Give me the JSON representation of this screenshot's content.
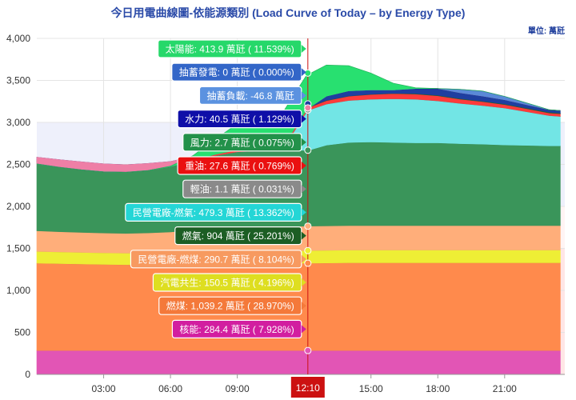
{
  "title": "今日用電曲線圖-依能源類別 (Load Curve of Today – by Energy Type)",
  "unit": "單位: 萬瓩",
  "crosshair_time": "12:10",
  "chart_data": {
    "type": "area",
    "stacked": true,
    "title": "今日用電曲線圖-依能源類別 (Load Curve of Today – by Energy Type)",
    "ylabel": "單位: 萬瓩",
    "ylim": [
      0,
      4000
    ],
    "yticks": [
      0,
      500,
      1000,
      1500,
      2000,
      2500,
      3000,
      3500,
      4000
    ],
    "xlim": [
      0,
      23.7
    ],
    "xticks": [
      {
        "value": 3,
        "label": "03:00"
      },
      {
        "value": 6,
        "label": "06:00"
      },
      {
        "value": 9,
        "label": "09:00"
      },
      {
        "value": 15,
        "label": "15:00"
      },
      {
        "value": 18,
        "label": "18:00"
      },
      {
        "value": 21,
        "label": "21:00"
      }
    ],
    "crosshair_x": 12.1667,
    "x": [
      0,
      1,
      2,
      3,
      4,
      5,
      6,
      7,
      8,
      9,
      10,
      11,
      12.1667,
      12.3,
      13,
      14,
      15,
      16,
      17,
      18,
      19,
      20,
      21,
      22,
      23,
      23.5
    ],
    "series": [
      {
        "name": "核能",
        "color": "#e255b5",
        "values": [
          284.4,
          284.4,
          284.4,
          284.4,
          284.4,
          284.4,
          284.4,
          284.4,
          284.4,
          284.4,
          284.4,
          284.4,
          284.4,
          284.4,
          284.4,
          284.4,
          284.4,
          284.4,
          284.4,
          284.4,
          284.4,
          284.4,
          284.4,
          284.4,
          284.4,
          284.4
        ]
      },
      {
        "name": "燃煤",
        "color": "#ff8a4c",
        "values": [
          1040,
          1035,
          1030,
          1025,
          1022,
          1020,
          1020,
          1025,
          1030,
          1035,
          1038,
          1039,
          1039.2,
          1040,
          1042,
          1045,
          1045,
          1045,
          1045,
          1045,
          1045,
          1045,
          1045,
          1045,
          1045,
          1045
        ]
      },
      {
        "name": "汽電共生",
        "color": "#eeee35",
        "values": [
          140,
          140,
          138,
          138,
          138,
          140,
          142,
          145,
          148,
          150,
          150,
          150,
          150.5,
          151,
          152,
          152,
          152,
          152,
          152,
          152,
          152,
          152,
          152,
          152,
          152,
          152
        ]
      },
      {
        "name": "民營電廠-燃煤",
        "color": "#ffae7a",
        "values": [
          245,
          240,
          238,
          236,
          235,
          240,
          250,
          265,
          280,
          290,
          290,
          290,
          290.7,
          290,
          290,
          290,
          290,
          290,
          290,
          290,
          290,
          290,
          290,
          290,
          290,
          290
        ]
      },
      {
        "name": "燃氣",
        "color": "#3a955a",
        "values": [
          820,
          805,
          790,
          775,
          770,
          780,
          790,
          820,
          860,
          890,
          900,
          902,
          904,
          910,
          960,
          990,
          995,
          990,
          985,
          985,
          975,
          970,
          960,
          955,
          950,
          950
        ]
      },
      {
        "name": "民營電廠-燃氣",
        "color": "#72e5e5",
        "values": [
          0,
          0,
          0,
          0,
          0,
          0,
          0,
          0,
          0,
          0,
          0,
          0,
          479.3,
          480,
          490,
          500,
          510,
          520,
          520,
          500,
          480,
          460,
          440,
          400,
          360,
          350
        ]
      },
      {
        "name": "輕油",
        "color": "#8c8c8c",
        "values": [
          1.1,
          1.1,
          1.1,
          1.1,
          1.1,
          1.1,
          1.1,
          1.1,
          1.1,
          1.1,
          1.1,
          1.1,
          1.1,
          1.1,
          1.1,
          1.1,
          1.1,
          1.1,
          1.1,
          1.1,
          1.1,
          1.1,
          1.1,
          1.1,
          1.1,
          1.1
        ]
      },
      {
        "name": "重油",
        "color": "#ff3b3b",
        "values": [
          5,
          5,
          5,
          5,
          5,
          5,
          5,
          10,
          20,
          25,
          27,
          27.5,
          27.6,
          30,
          40,
          50,
          55,
          60,
          60,
          60,
          50,
          45,
          40,
          35,
          30,
          30
        ]
      },
      {
        "name": "風力",
        "color": "#206a2a",
        "values": [
          20,
          18,
          17,
          16,
          15,
          14,
          12,
          10,
          8,
          6,
          4,
          3,
          2.7,
          3,
          3,
          3,
          4,
          4,
          5,
          5,
          6,
          6,
          7,
          8,
          8,
          8
        ]
      },
      {
        "name": "水力",
        "color": "#1f3fa0",
        "values": [
          30,
          28,
          27,
          26,
          26,
          27,
          30,
          32,
          35,
          38,
          40,
          40,
          40.5,
          42,
          50,
          60,
          50,
          40,
          60,
          80,
          70,
          60,
          50,
          40,
          30,
          30
        ]
      },
      {
        "name": "抽蓄負載",
        "color": "#ee7fa6",
        "values": [
          -80,
          -90,
          -95,
          -95,
          -90,
          -85,
          -60,
          -50,
          -48,
          -47,
          -47,
          -47,
          -46.8,
          -45,
          0,
          0,
          0,
          0,
          0,
          0,
          0,
          0,
          0,
          0,
          0,
          0
        ]
      },
      {
        "name": "抽蓄發電",
        "color": "#5a89d8",
        "values": [
          0,
          0,
          0,
          0,
          0,
          0,
          0,
          0,
          0,
          0,
          0,
          0,
          0,
          0,
          0,
          0,
          0,
          0,
          0,
          0,
          40,
          60,
          40,
          20,
          0,
          0
        ]
      },
      {
        "name": "太陽能",
        "color": "#28e070",
        "values": [
          0,
          0,
          0,
          0,
          0,
          0,
          5,
          60,
          180,
          310,
          390,
          410,
          413.9,
          400,
          370,
          300,
          200,
          80,
          10,
          0,
          0,
          0,
          0,
          0,
          0,
          0
        ]
      }
    ],
    "tooltips": [
      {
        "name": "太陽能",
        "value": "413.9 萬瓩",
        "pct": "11.539%",
        "text": "太陽能: 413.9 萬瓩 ( 11.539%)",
        "bg": "#26d86a",
        "fg": "#ffffff"
      },
      {
        "name": "抽蓄發電",
        "value": "0 萬瓩",
        "pct": "0.000%",
        "text": "抽蓄發電: 0 萬瓩 ( 0.000%)",
        "bg": "#3366c8",
        "fg": "#ffffff"
      },
      {
        "name": "抽蓄負載",
        "value": "-46.8 萬瓩",
        "pct": "",
        "text": "抽蓄負載: -46.8 萬瓩",
        "bg": "#5b92e0",
        "fg": "#ffffff"
      },
      {
        "name": "水力",
        "value": "40.5 萬瓩",
        "pct": "1.129%",
        "text": "水力: 40.5 萬瓩 ( 1.129%)",
        "bg": "#0f0fa8",
        "fg": "#ffffff"
      },
      {
        "name": "風力",
        "value": "2.7 萬瓩",
        "pct": "0.075%",
        "text": "風力: 2.7 萬瓩 ( 0.075%)",
        "bg": "#23914a",
        "fg": "#ffffff"
      },
      {
        "name": "重油",
        "value": "27.6 萬瓩",
        "pct": "0.769%",
        "text": "重油: 27.6 萬瓩 ( 0.769%)",
        "bg": "#ea1010",
        "fg": "#ffffff"
      },
      {
        "name": "輕油",
        "value": "1.1 萬瓩",
        "pct": "0.031%",
        "text": "輕油: 1.1 萬瓩 ( 0.031%)",
        "bg": "#8a8a8a",
        "fg": "#ffffff"
      },
      {
        "name": "民營電廠-燃氣",
        "value": "479.3 萬瓩",
        "pct": "13.362%",
        "text": "民營電廠-燃氣: 479.3 萬瓩 ( 13.362%)",
        "bg": "#24d6d6",
        "fg": "#ffffff"
      },
      {
        "name": "燃氣",
        "value": "904 萬瓩",
        "pct": "25.201%",
        "text": "燃氣: 904 萬瓩 ( 25.201%)",
        "bg": "#1c5e24",
        "fg": "#ffffff"
      },
      {
        "name": "民營電廠-燃煤",
        "value": "290.7 萬瓩",
        "pct": "8.104%",
        "text": "民營電廠-燃煤: 290.7 萬瓩 ( 8.104%)",
        "bg": "#f79a60",
        "fg": "#ffffff"
      },
      {
        "name": "汽電共生",
        "value": "150.5 萬瓩",
        "pct": "4.196%",
        "text": "汽電共生: 150.5 萬瓩 ( 4.196%)",
        "bg": "#dede20",
        "fg": "#ffffff"
      },
      {
        "name": "燃煤",
        "value": "1,039.2 萬瓩",
        "pct": "28.970%",
        "text": "燃煤: 1,039.2 萬瓩 ( 28.970%)",
        "bg": "#f4793a",
        "fg": "#ffffff"
      },
      {
        "name": "核能",
        "value": "284.4 萬瓩",
        "pct": "7.928%",
        "text": "核能: 284.4 萬瓩 ( 7.928%)",
        "bg": "#d21ea0",
        "fg": "#ffffff"
      }
    ],
    "bands": [
      {
        "from": 2000,
        "to": 3000,
        "color": "#eef0fb"
      },
      {
        "from": 1500,
        "to": 2000,
        "color": "#fff4f4"
      },
      {
        "from": 0,
        "to": 1500,
        "color": "#ffe6e6"
      }
    ],
    "grid": true,
    "legend": "none"
  }
}
